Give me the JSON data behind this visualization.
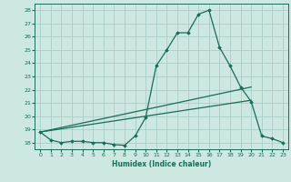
{
  "xlabel": "Humidex (Indice chaleur)",
  "bg_color": "#cce8e0",
  "grid_color": "#aacfc8",
  "line_color": "#1a6b5a",
  "xlim": [
    -0.5,
    23.5
  ],
  "ylim": [
    17.5,
    28.5
  ],
  "yticks": [
    18,
    19,
    20,
    21,
    22,
    23,
    24,
    25,
    26,
    27,
    28
  ],
  "xticks": [
    0,
    1,
    2,
    3,
    4,
    5,
    6,
    7,
    8,
    9,
    10,
    11,
    12,
    13,
    14,
    15,
    16,
    17,
    18,
    19,
    20,
    21,
    22,
    23
  ],
  "curve1_x": [
    0,
    1,
    2,
    3,
    4,
    5,
    6,
    7,
    8,
    9,
    10,
    11,
    12,
    13,
    14,
    15,
    16,
    17,
    18,
    19,
    20,
    21,
    22,
    23
  ],
  "curve1_y": [
    18.8,
    18.2,
    18.0,
    18.1,
    18.1,
    18.0,
    18.0,
    17.85,
    17.8,
    18.5,
    19.9,
    23.8,
    25.0,
    26.3,
    26.3,
    27.7,
    28.0,
    25.2,
    23.8,
    22.2,
    21.1,
    18.5,
    18.3,
    18.0
  ],
  "curve2_x": [
    0,
    20
  ],
  "curve2_y": [
    18.8,
    21.2
  ],
  "curve3_x": [
    0,
    20
  ],
  "curve3_y": [
    18.8,
    22.2
  ]
}
